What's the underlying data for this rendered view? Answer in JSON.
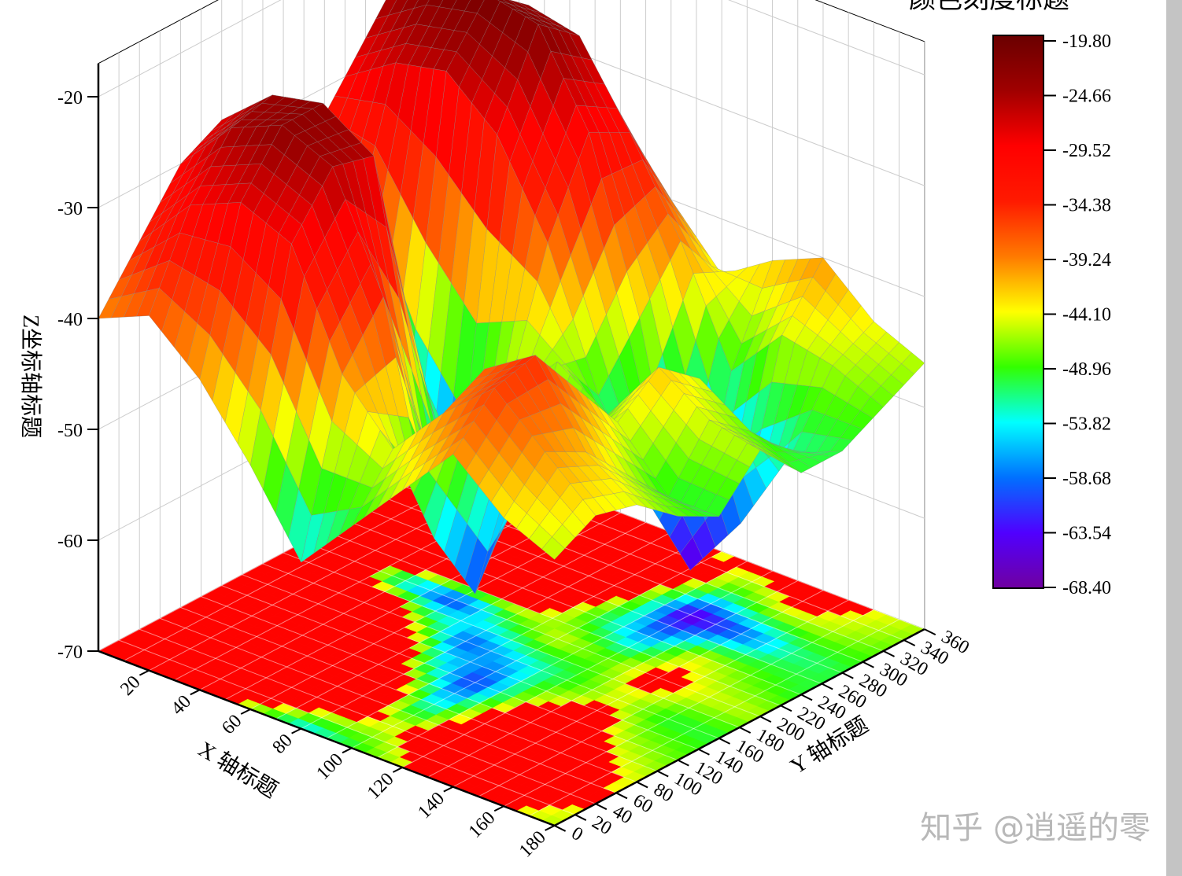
{
  "chart_data": {
    "type": "surface3d",
    "xlabel": "X 轴标题",
    "ylabel": "Y 轴标题",
    "zlabel": "Z坐标轴标题",
    "colorscale_title": "颜色刻度标题",
    "xlim": [
      0,
      180
    ],
    "ylim": [
      0,
      360
    ],
    "zlim": [
      -70,
      -20
    ],
    "x_ticks": [
      20,
      40,
      60,
      80,
      100,
      120,
      140,
      160,
      180
    ],
    "y_ticks": [
      0,
      20,
      40,
      60,
      80,
      100,
      120,
      140,
      160,
      180,
      200,
      220,
      240,
      260,
      280,
      300,
      320,
      340,
      360
    ],
    "z_ticks": [
      -70,
      -60,
      -50,
      -40,
      -30,
      -20
    ],
    "colorscale_levels": [
      "-19.80",
      "-24.66",
      "-29.52",
      "-34.38",
      "-39.24",
      "-44.10",
      "-48.96",
      "-53.82",
      "-58.68",
      "-63.54",
      "-68.40"
    ],
    "colorscale_colors": [
      "#6a0000",
      "#a00000",
      "#ff0000",
      "#ff1a00",
      "#ff7a00",
      "#ffff00",
      "#33ff00",
      "#00ffff",
      "#0070ff",
      "#5000ff",
      "#7000a0"
    ],
    "grid_x": [
      0,
      20,
      40,
      60,
      80,
      100,
      120,
      140,
      160,
      180
    ],
    "grid_y": [
      0,
      40,
      80,
      120,
      160,
      200,
      240,
      280,
      320,
      360
    ],
    "z": [
      [
        -40,
        -35,
        -30,
        -28,
        -30,
        -35,
        -30,
        -25,
        -28,
        -38
      ],
      [
        -38,
        -30,
        -25,
        -24,
        -28,
        -40,
        -27,
        -22,
        -25,
        -35
      ],
      [
        -42,
        -28,
        -23,
        -23,
        -30,
        -55,
        -26,
        -21,
        -24,
        -33
      ],
      [
        -48,
        -30,
        -25,
        -26,
        -45,
        -62,
        -30,
        -22,
        -25,
        -35
      ],
      [
        -55,
        -40,
        -35,
        -50,
        -60,
        -50,
        -38,
        -30,
        -32,
        -40
      ],
      [
        -50,
        -45,
        -55,
        -62,
        -55,
        -45,
        -50,
        -45,
        -40,
        -45
      ],
      [
        -45,
        -40,
        -38,
        -45,
        -50,
        -48,
        -58,
        -66,
        -50,
        -42
      ],
      [
        -40,
        -36,
        -35,
        -40,
        -45,
        -42,
        -45,
        -60,
        -45,
        -40
      ],
      [
        -44,
        -40,
        -42,
        -46,
        -50,
        -45,
        -48,
        -52,
        -46,
        -44
      ],
      [
        -46,
        -44,
        -45,
        -48,
        -50,
        -46,
        -50,
        -50,
        -48,
        -46
      ]
    ],
    "grid": true
  },
  "watermark": "知乎 @逍遥的零"
}
